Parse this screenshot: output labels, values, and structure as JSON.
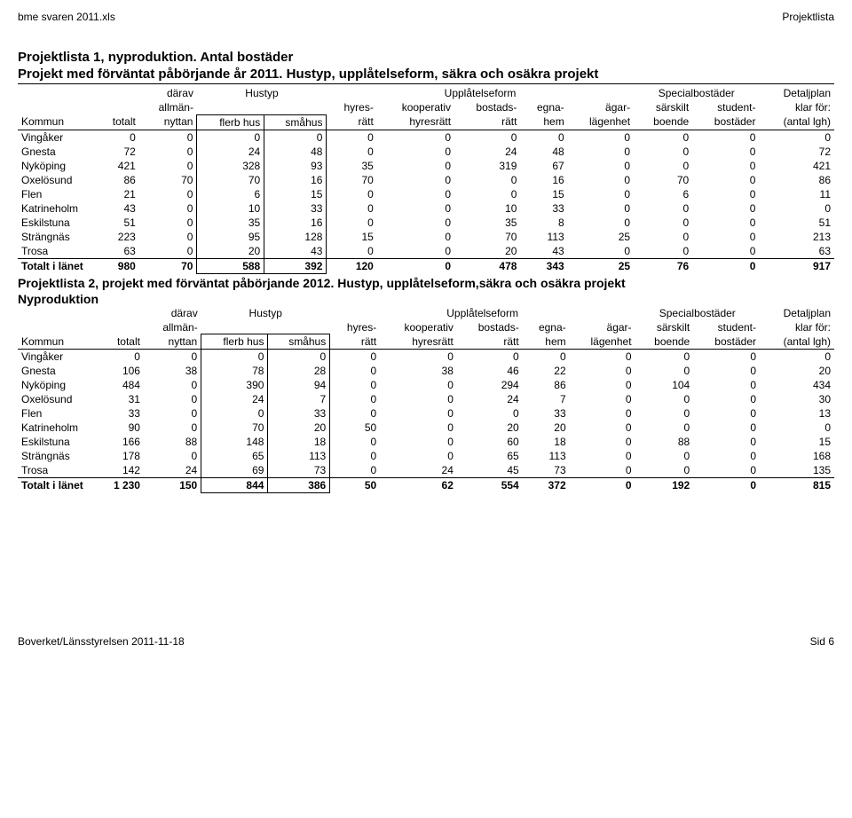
{
  "topbar": {
    "left": "bme svaren 2011.xls",
    "right": "Projektlista"
  },
  "section1": {
    "title": "Projektlista 1, nyproduktion. Antal bostäder",
    "subtitle": "Projekt med förväntat påbörjande år 2011. Hustyp, upplåtelseform, säkra och osäkra projekt",
    "headers": {
      "r1": {
        "darav": "därav",
        "hustyp": "Hustyp",
        "upplatelseform": "Upplåtelseform",
        "specialbostader": "Specialbostäder",
        "detaljplan": "Detaljplan"
      },
      "r2": {
        "allman": "allmän-",
        "hyres": "hyres-",
        "kooperativ": "kooperativ",
        "bostads": "bostads-",
        "egna": "egna-",
        "agar": "ägar-",
        "sarskilt": "särskilt",
        "student": "student-",
        "klar": "klar för:"
      },
      "r3": {
        "kommun": "Kommun",
        "totalt": "totalt",
        "nyttan": "nyttan",
        "flerb": "flerb hus",
        "smahus": "småhus",
        "ratt": "rätt",
        "hyresratt": "hyresrätt",
        "ratt2": "rätt",
        "hem": "hem",
        "lagenhet": "lägenhet",
        "boende": "boende",
        "bostader": "bostäder",
        "antal": "(antal lgh)"
      }
    },
    "rows": [
      {
        "kommun": "Vingåker",
        "c": [
          "0",
          "0",
          "0",
          "0",
          "0",
          "0",
          "0",
          "0",
          "0",
          "0",
          "0",
          "0"
        ]
      },
      {
        "kommun": "Gnesta",
        "c": [
          "72",
          "0",
          "24",
          "48",
          "0",
          "0",
          "24",
          "48",
          "0",
          "0",
          "0",
          "72"
        ]
      },
      {
        "kommun": "Nyköping",
        "c": [
          "421",
          "0",
          "328",
          "93",
          "35",
          "0",
          "319",
          "67",
          "0",
          "0",
          "0",
          "421"
        ]
      },
      {
        "kommun": "Oxelösund",
        "c": [
          "86",
          "70",
          "70",
          "16",
          "70",
          "0",
          "0",
          "16",
          "0",
          "70",
          "0",
          "86"
        ]
      },
      {
        "kommun": "Flen",
        "c": [
          "21",
          "0",
          "6",
          "15",
          "0",
          "0",
          "0",
          "15",
          "0",
          "6",
          "0",
          "11"
        ]
      },
      {
        "kommun": "Katrineholm",
        "c": [
          "43",
          "0",
          "10",
          "33",
          "0",
          "0",
          "10",
          "33",
          "0",
          "0",
          "0",
          "0"
        ]
      },
      {
        "kommun": "Eskilstuna",
        "c": [
          "51",
          "0",
          "35",
          "16",
          "0",
          "0",
          "35",
          "8",
          "0",
          "0",
          "0",
          "51"
        ]
      },
      {
        "kommun": "Strängnäs",
        "c": [
          "223",
          "0",
          "95",
          "128",
          "15",
          "0",
          "70",
          "113",
          "25",
          "0",
          "0",
          "213"
        ]
      },
      {
        "kommun": "Trosa",
        "c": [
          "63",
          "0",
          "20",
          "43",
          "0",
          "0",
          "20",
          "43",
          "0",
          "0",
          "0",
          "63"
        ]
      }
    ],
    "total": {
      "label": "Totalt i länet",
      "c": [
        "980",
        "70",
        "588",
        "392",
        "120",
        "0",
        "478",
        "343",
        "25",
        "76",
        "0",
        "917"
      ]
    }
  },
  "mid": {
    "line1": "Projektlista 2, projekt med förväntat påbörjande 2012. Hustyp, upplåtelseform,säkra och osäkra projekt",
    "line2": "Nyproduktion"
  },
  "section2": {
    "headers": {
      "r1": {
        "darav": "därav",
        "hustyp": "Hustyp",
        "upplatelseform": "Upplåtelseform",
        "specialbostader": "Specialbostäder",
        "detaljplan": "Detaljplan"
      },
      "r2": {
        "allman": "allmän-",
        "hyres": "hyres-",
        "kooperativ": "kooperativ",
        "bostads": "bostads-",
        "egna": "egna-",
        "agar": "ägar-",
        "sarskilt": "särskilt",
        "student": "student-",
        "klar": "klar för:"
      },
      "r3": {
        "kommun": "Kommun",
        "totalt": "totalt",
        "nyttan": "nyttan",
        "flerb": "flerb hus",
        "smahus": "småhus",
        "ratt": "rätt",
        "hyresratt": "hyresrätt",
        "ratt2": "rätt",
        "hem": "hem",
        "lagenhet": "lägenhet",
        "boende": "boende",
        "bostader": "bostäder",
        "antal": "(antal lgh)"
      }
    },
    "rows": [
      {
        "kommun": "Vingåker",
        "c": [
          "0",
          "0",
          "0",
          "0",
          "0",
          "0",
          "0",
          "0",
          "0",
          "0",
          "0",
          "0"
        ]
      },
      {
        "kommun": "Gnesta",
        "c": [
          "106",
          "38",
          "78",
          "28",
          "0",
          "38",
          "46",
          "22",
          "0",
          "0",
          "0",
          "20"
        ]
      },
      {
        "kommun": "Nyköping",
        "c": [
          "484",
          "0",
          "390",
          "94",
          "0",
          "0",
          "294",
          "86",
          "0",
          "104",
          "0",
          "434"
        ]
      },
      {
        "kommun": "Oxelösund",
        "c": [
          "31",
          "0",
          "24",
          "7",
          "0",
          "0",
          "24",
          "7",
          "0",
          "0",
          "0",
          "30"
        ]
      },
      {
        "kommun": "Flen",
        "c": [
          "33",
          "0",
          "0",
          "33",
          "0",
          "0",
          "0",
          "33",
          "0",
          "0",
          "0",
          "13"
        ]
      },
      {
        "kommun": "Katrineholm",
        "c": [
          "90",
          "0",
          "70",
          "20",
          "50",
          "0",
          "20",
          "20",
          "0",
          "0",
          "0",
          "0"
        ]
      },
      {
        "kommun": "Eskilstuna",
        "c": [
          "166",
          "88",
          "148",
          "18",
          "0",
          "0",
          "60",
          "18",
          "0",
          "88",
          "0",
          "15"
        ]
      },
      {
        "kommun": "Strängnäs",
        "c": [
          "178",
          "0",
          "65",
          "113",
          "0",
          "0",
          "65",
          "113",
          "0",
          "0",
          "0",
          "168"
        ]
      },
      {
        "kommun": "Trosa",
        "c": [
          "142",
          "24",
          "69",
          "73",
          "0",
          "24",
          "45",
          "73",
          "0",
          "0",
          "0",
          "135"
        ]
      }
    ],
    "total": {
      "label": "Totalt i länet",
      "c": [
        "1 230",
        "150",
        "844",
        "386",
        "50",
        "62",
        "554",
        "372",
        "0",
        "192",
        "0",
        "815"
      ]
    }
  },
  "footer": {
    "left": "Boverket/Länsstyrelsen 2011-11-18",
    "right": "Sid 6"
  }
}
